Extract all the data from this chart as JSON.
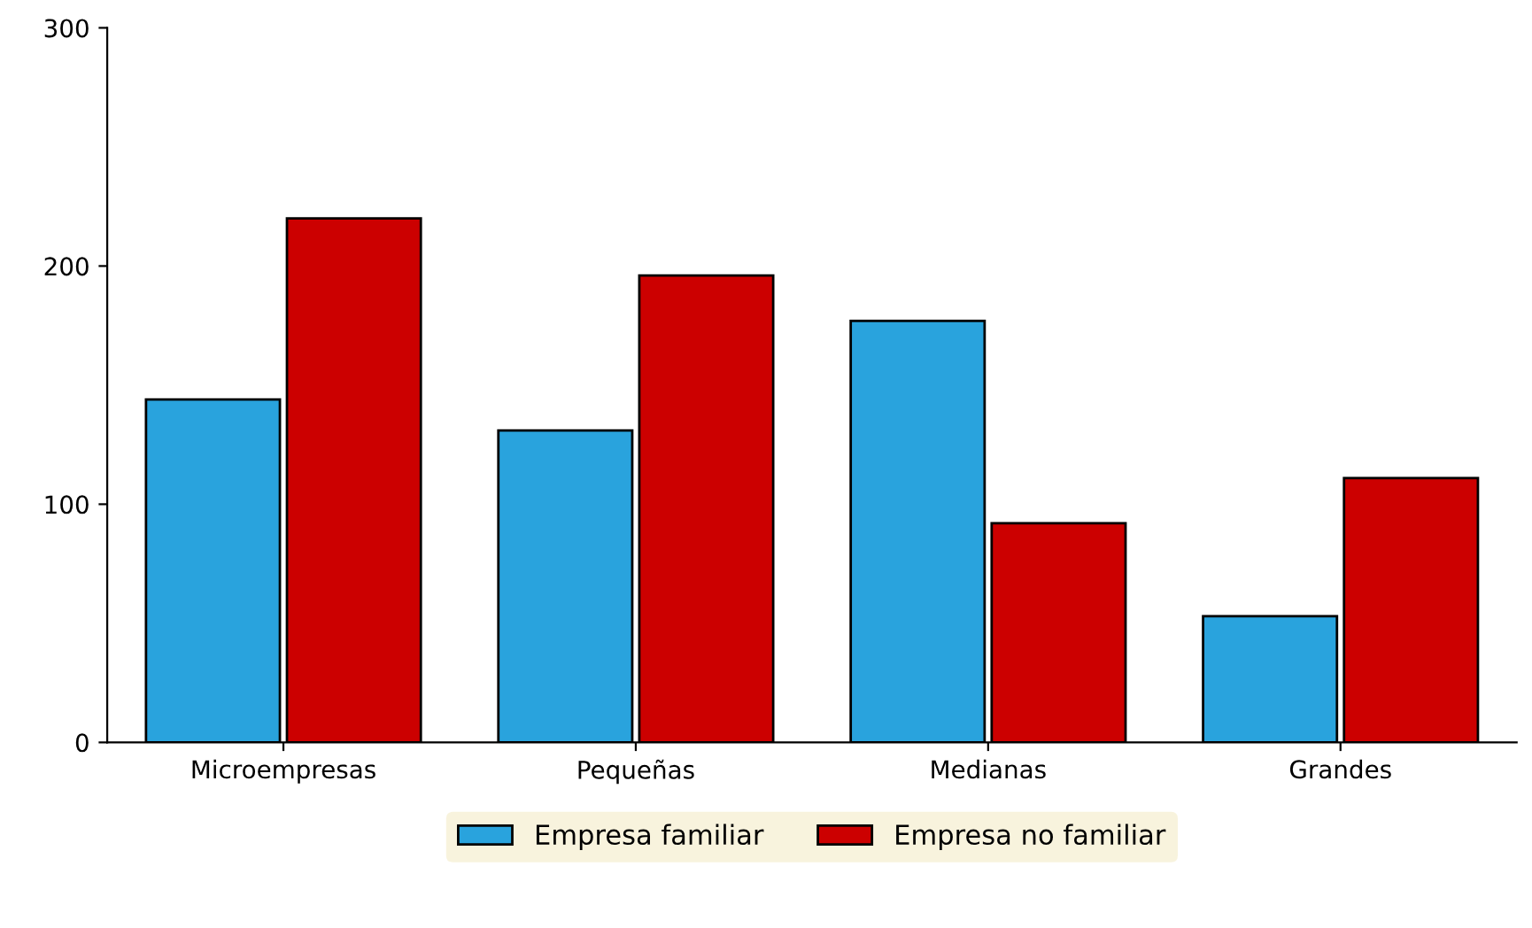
{
  "chart_data": {
    "type": "bar",
    "categories": [
      "Microempresas",
      "Pequeñas",
      "Medianas",
      "Grandes"
    ],
    "series": [
      {
        "name": "Empresa familiar",
        "color": "#29a3dd",
        "values": [
          144,
          131,
          177,
          53
        ]
      },
      {
        "name": "Empresa no familiar",
        "color": "#cc0000",
        "values": [
          220,
          196,
          92,
          111
        ]
      }
    ],
    "ylim": [
      0,
      300
    ],
    "yticks": [
      0,
      100,
      200,
      300
    ],
    "grid": false,
    "legend": "bottom"
  }
}
